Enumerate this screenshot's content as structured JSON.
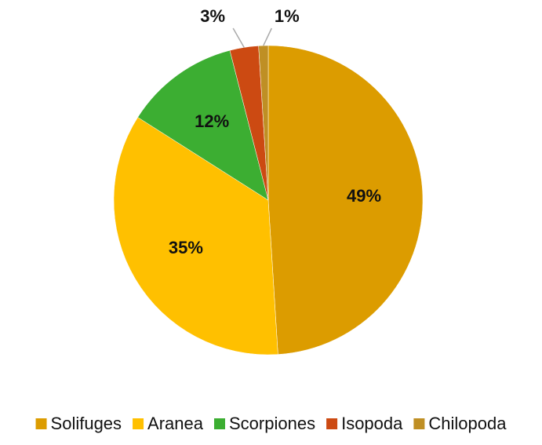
{
  "chart_data": {
    "type": "pie",
    "categories": [
      "Solifuges",
      "Aranea",
      "Scorpiones",
      "Isopoda",
      "Chilopoda"
    ],
    "values": [
      49,
      35,
      12,
      3,
      1
    ],
    "value_labels": [
      "49%",
      "35%",
      "12%",
      "3%",
      "1%"
    ],
    "colors": [
      "#dc9c00",
      "#ffc000",
      "#3cae32",
      "#cc4a12",
      "#bf8f24"
    ],
    "legend": "bottom"
  }
}
